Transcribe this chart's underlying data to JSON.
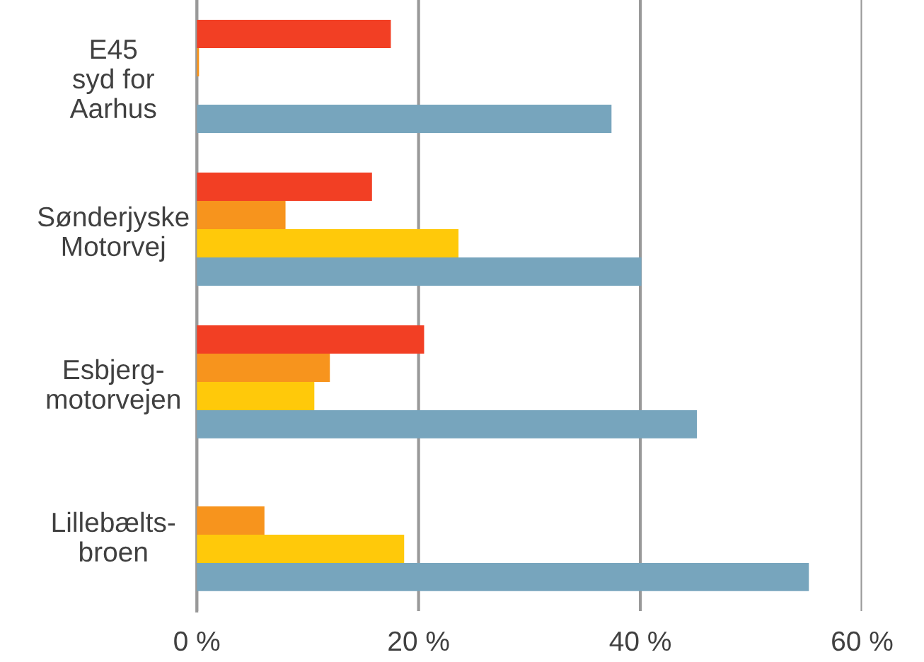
{
  "chart_data": {
    "type": "bar",
    "orientation": "horizontal",
    "categories": [
      "E45\nsyd for\nAarhus",
      "Sønderjyske\nMotorvej",
      "Esbjerg-\nmotorvejen",
      "Lillebælts-\nbroen"
    ],
    "series": [
      {
        "color": "#f23f24",
        "values": [
          17.5,
          15.8,
          20.5,
          null
        ]
      },
      {
        "color": "#f7941d",
        "values": [
          0.2,
          8.0,
          12.0,
          6.1
        ]
      },
      {
        "color": "#ffc90a",
        "values": [
          null,
          23.6,
          10.6,
          18.7
        ]
      },
      {
        "color": "#77a5bd",
        "values": [
          37.4,
          40.1,
          45.1,
          55.2
        ]
      }
    ],
    "xlim": [
      0,
      60
    ],
    "xticks": [
      {
        "value": 0,
        "label": "0 %"
      },
      {
        "value": 20,
        "label": "20 %"
      },
      {
        "value": 40,
        "label": "40 %"
      },
      {
        "value": 60,
        "label": "60 %"
      }
    ],
    "grid": "x"
  }
}
